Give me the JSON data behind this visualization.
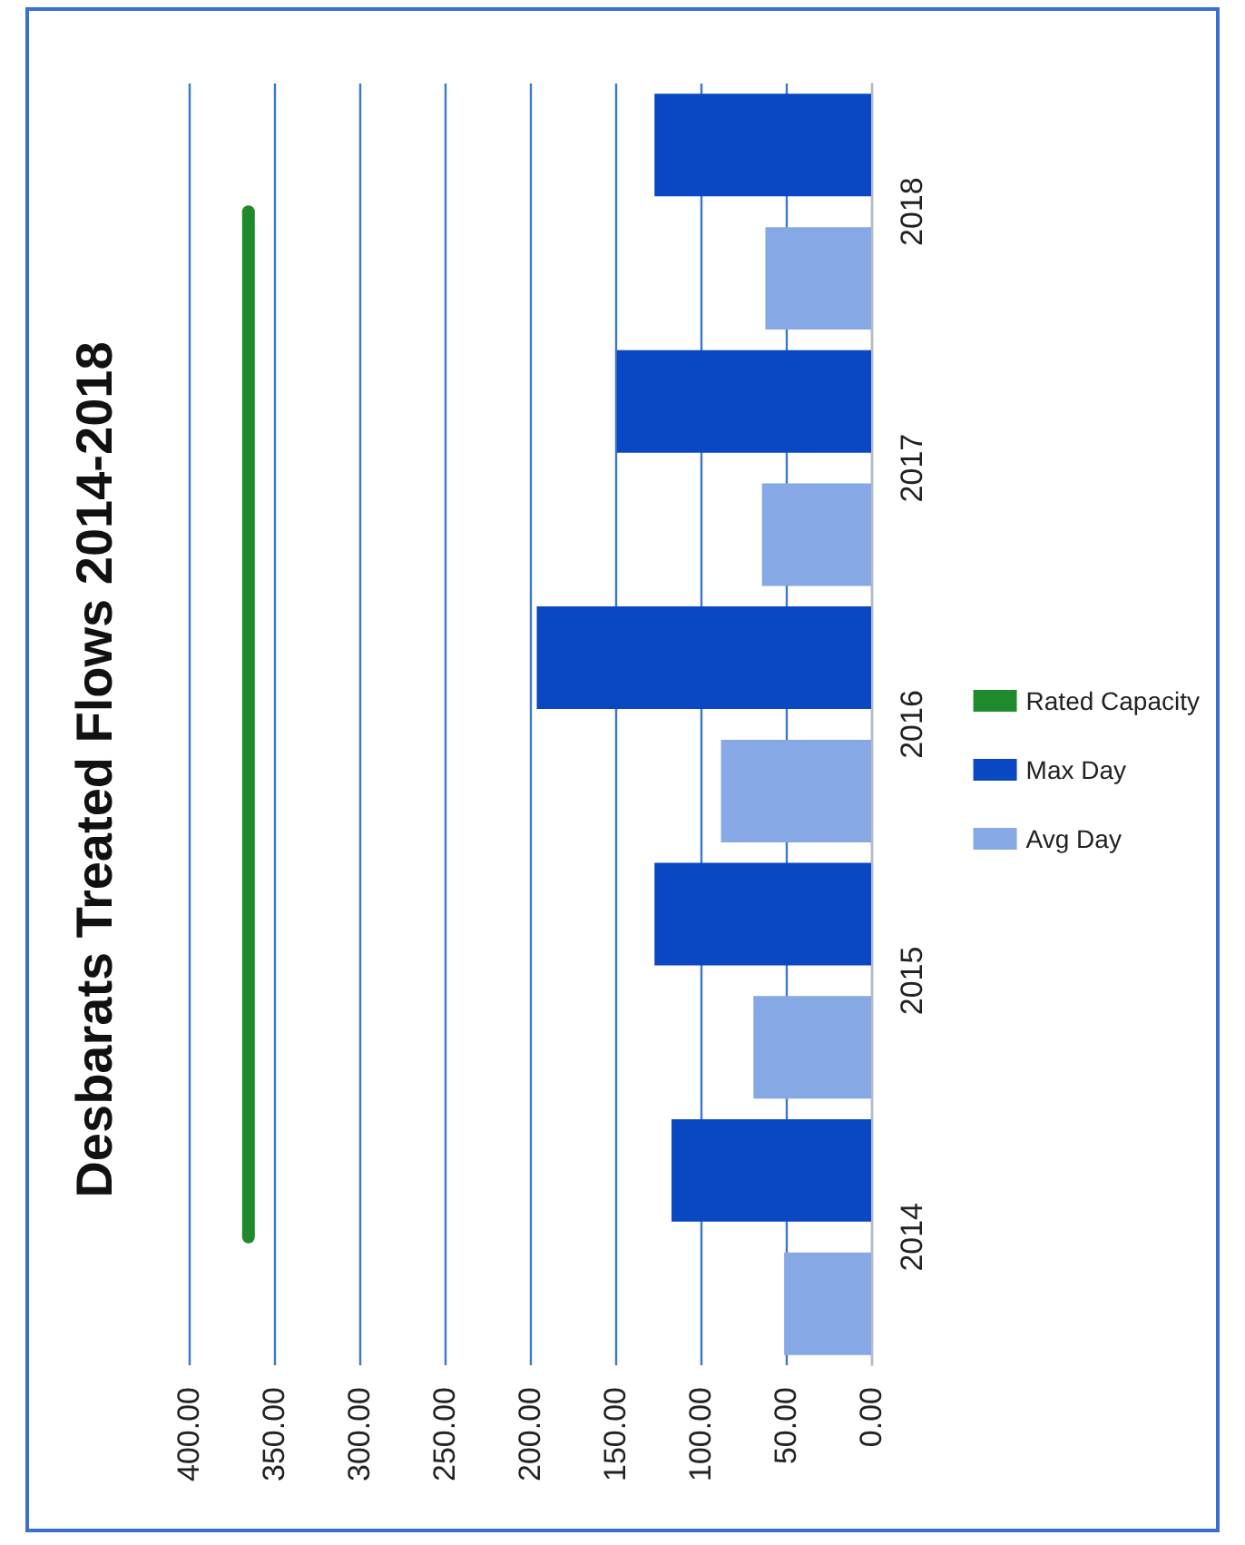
{
  "chart_data": {
    "type": "bar",
    "orientation": "horizontal",
    "title": "Desbarats Treated Flows 2014-2018",
    "categories": [
      "2018",
      "2017",
      "2016",
      "2015",
      "2014"
    ],
    "series": [
      {
        "name": "Avg Day",
        "color": "#86a8e4",
        "values": [
          62,
          64,
          88,
          69,
          51
        ]
      },
      {
        "name": "Max Day",
        "color": "#0a47c2",
        "values": [
          127,
          149,
          196,
          127,
          117
        ]
      },
      {
        "name": "Rated Capacity",
        "type": "line",
        "color": "#1f8a2c",
        "values": [
          365,
          365,
          365,
          365,
          365
        ]
      }
    ],
    "xlim": [
      400,
      0
    ],
    "xticks": [
      {
        "value": 400,
        "label": "400.00"
      },
      {
        "value": 350,
        "label": "350.00"
      },
      {
        "value": 300,
        "label": "300.00"
      },
      {
        "value": 250,
        "label": "250.00"
      },
      {
        "value": 200,
        "label": "200.00"
      },
      {
        "value": 150,
        "label": "150.00"
      },
      {
        "value": 100,
        "label": "100.00"
      },
      {
        "value": 50,
        "label": "50.00"
      },
      {
        "value": 0,
        "label": "0.00"
      }
    ],
    "grid": "x",
    "legend": "right",
    "marker": "none"
  }
}
